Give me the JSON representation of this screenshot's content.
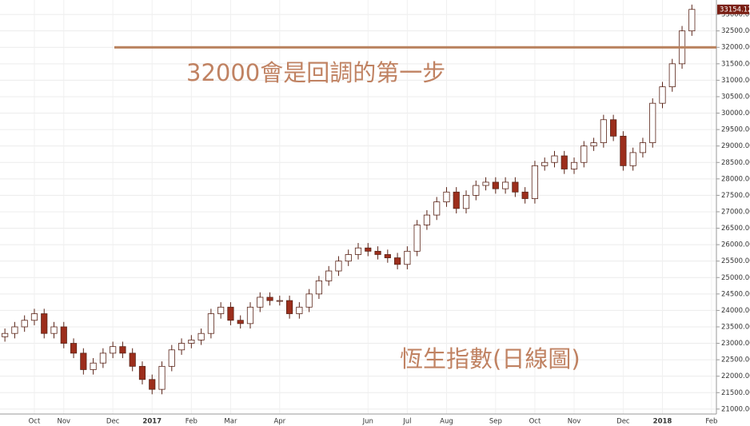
{
  "chart_data": {
    "type": "candlestick",
    "annotations": [
      "32000會是回調的第一步",
      "恆生指數(日線圖)"
    ],
    "hline": 32000,
    "hline_color": "#b8805c",
    "up_color": "#ffffff",
    "down_color": "#9c2e1c",
    "outline_color": "#5a2418",
    "grid": true,
    "last_close_label": "33154.12",
    "categories": [
      null,
      null,
      null,
      "Oct",
      null,
      null,
      "Nov",
      null,
      null,
      null,
      null,
      "Dec",
      null,
      null,
      null,
      "2017",
      null,
      null,
      null,
      "Feb",
      null,
      null,
      null,
      "Mar",
      null,
      null,
      null,
      null,
      "Apr",
      null,
      null,
      null,
      null,
      null,
      null,
      null,
      null,
      "Jun",
      null,
      null,
      null,
      "Jul",
      null,
      null,
      null,
      "Aug",
      null,
      null,
      null,
      null,
      "Sep",
      null,
      null,
      null,
      "Oct",
      null,
      null,
      null,
      "Nov",
      null,
      null,
      null,
      null,
      "Dec",
      null,
      null,
      null,
      "2018",
      null,
      null,
      null,
      null,
      "Feb"
    ],
    "open": [
      23200,
      23300,
      23500,
      23700,
      23900,
      23300,
      23500,
      23000,
      22700,
      22200,
      22400,
      22700,
      22900,
      22700,
      22300,
      21900,
      21600,
      22300,
      22800,
      23000,
      23100,
      23300,
      23900,
      24100,
      23700,
      23600,
      24100,
      24400,
      24300,
      24300,
      23900,
      24100,
      24500,
      24900,
      25200,
      25500,
      25700,
      25900,
      25800,
      25700,
      25600,
      25400,
      25800,
      26600,
      26900,
      27300,
      27600,
      27100,
      27500,
      27800,
      27900,
      27700,
      27900,
      27600,
      27400,
      28400,
      28500,
      28700,
      28300,
      28500,
      29000,
      29100,
      29800,
      29300,
      28400,
      28800,
      29100,
      30300,
      30800,
      31500,
      32500,
      null,
      null
    ],
    "high": [
      23450,
      23650,
      23850,
      24050,
      24050,
      23650,
      23650,
      23150,
      22850,
      22550,
      22850,
      23050,
      23050,
      22850,
      22450,
      22050,
      22450,
      22950,
      23150,
      23250,
      23450,
      24050,
      24250,
      24250,
      23850,
      24250,
      24550,
      24550,
      24450,
      24450,
      24250,
      24650,
      25050,
      25350,
      25650,
      25850,
      26050,
      26050,
      25950,
      25850,
      25750,
      25950,
      26750,
      27050,
      27450,
      27750,
      27750,
      27650,
      27950,
      28050,
      28050,
      28050,
      28050,
      27750,
      28550,
      28650,
      28850,
      28850,
      28650,
      29150,
      29250,
      29950,
      29950,
      29450,
      28950,
      29250,
      30450,
      30950,
      31650,
      32650,
      33300,
      null,
      null
    ],
    "low": [
      23050,
      23150,
      23350,
      23550,
      23150,
      23150,
      22850,
      22550,
      22050,
      22050,
      22250,
      22550,
      22550,
      22150,
      21750,
      21450,
      21450,
      22150,
      22650,
      22850,
      22950,
      23150,
      23750,
      23550,
      23450,
      23450,
      23950,
      24150,
      24150,
      23750,
      23750,
      23950,
      24350,
      24750,
      25050,
      25350,
      25550,
      25650,
      25550,
      25450,
      25250,
      25250,
      25650,
      26450,
      26750,
      27150,
      26950,
      26950,
      27350,
      27650,
      27550,
      27550,
      27450,
      27250,
      27250,
      28250,
      28350,
      28150,
      28150,
      28350,
      28850,
      28950,
      29150,
      28250,
      28250,
      28650,
      28950,
      30150,
      30650,
      31350,
      32350,
      null,
      null
    ],
    "close": [
      23300,
      23500,
      23700,
      23900,
      23300,
      23500,
      23000,
      22700,
      22200,
      22400,
      22700,
      22900,
      22700,
      22300,
      21900,
      21600,
      22300,
      22800,
      23000,
      23100,
      23300,
      23900,
      24100,
      23700,
      23600,
      24100,
      24400,
      24300,
      24300,
      23900,
      24100,
      24500,
      24900,
      25200,
      25500,
      25700,
      25900,
      25800,
      25700,
      25600,
      25400,
      25800,
      26600,
      26900,
      27300,
      27600,
      27100,
      27500,
      27800,
      27900,
      27700,
      27900,
      27600,
      27400,
      28400,
      28500,
      28700,
      28300,
      28500,
      29000,
      29100,
      29800,
      29300,
      28400,
      28800,
      29100,
      30300,
      30800,
      31500,
      32500,
      33154.12,
      null,
      null
    ],
    "ylim": [
      20850,
      33440
    ],
    "yticks": [
      {
        "value": 21000,
        "label": "21000.00"
      },
      {
        "value": 21500,
        "label": "21500.00"
      },
      {
        "value": 22000,
        "label": "22000.00"
      },
      {
        "value": 22500,
        "label": "22500.00"
      },
      {
        "value": 23000,
        "label": "23000.00"
      },
      {
        "value": 23500,
        "label": "23500.00"
      },
      {
        "value": 24000,
        "label": "24000.00"
      },
      {
        "value": 24500,
        "label": "24500.00"
      },
      {
        "value": 25000,
        "label": "25000.00"
      },
      {
        "value": 25500,
        "label": "25500.00"
      },
      {
        "value": 26000,
        "label": "26000.00"
      },
      {
        "value": 26500,
        "label": "26500.00"
      },
      {
        "value": 27000,
        "label": "27000.00"
      },
      {
        "value": 27500,
        "label": "27500.00"
      },
      {
        "value": 28000,
        "label": "28000.00"
      },
      {
        "value": 28500,
        "label": "28500.00"
      },
      {
        "value": 29000,
        "label": "29000.00"
      },
      {
        "value": 29500,
        "label": "29500.00"
      },
      {
        "value": 30000,
        "label": "30000.00"
      },
      {
        "value": 30500,
        "label": "30500.00"
      },
      {
        "value": 31000,
        "label": "31000.00"
      },
      {
        "value": 31500,
        "label": "31500.00"
      },
      {
        "value": 32000,
        "label": "32000.00"
      },
      {
        "value": 32500,
        "label": "32500.00"
      },
      {
        "value": 33000,
        "label": "33000.00"
      }
    ]
  }
}
